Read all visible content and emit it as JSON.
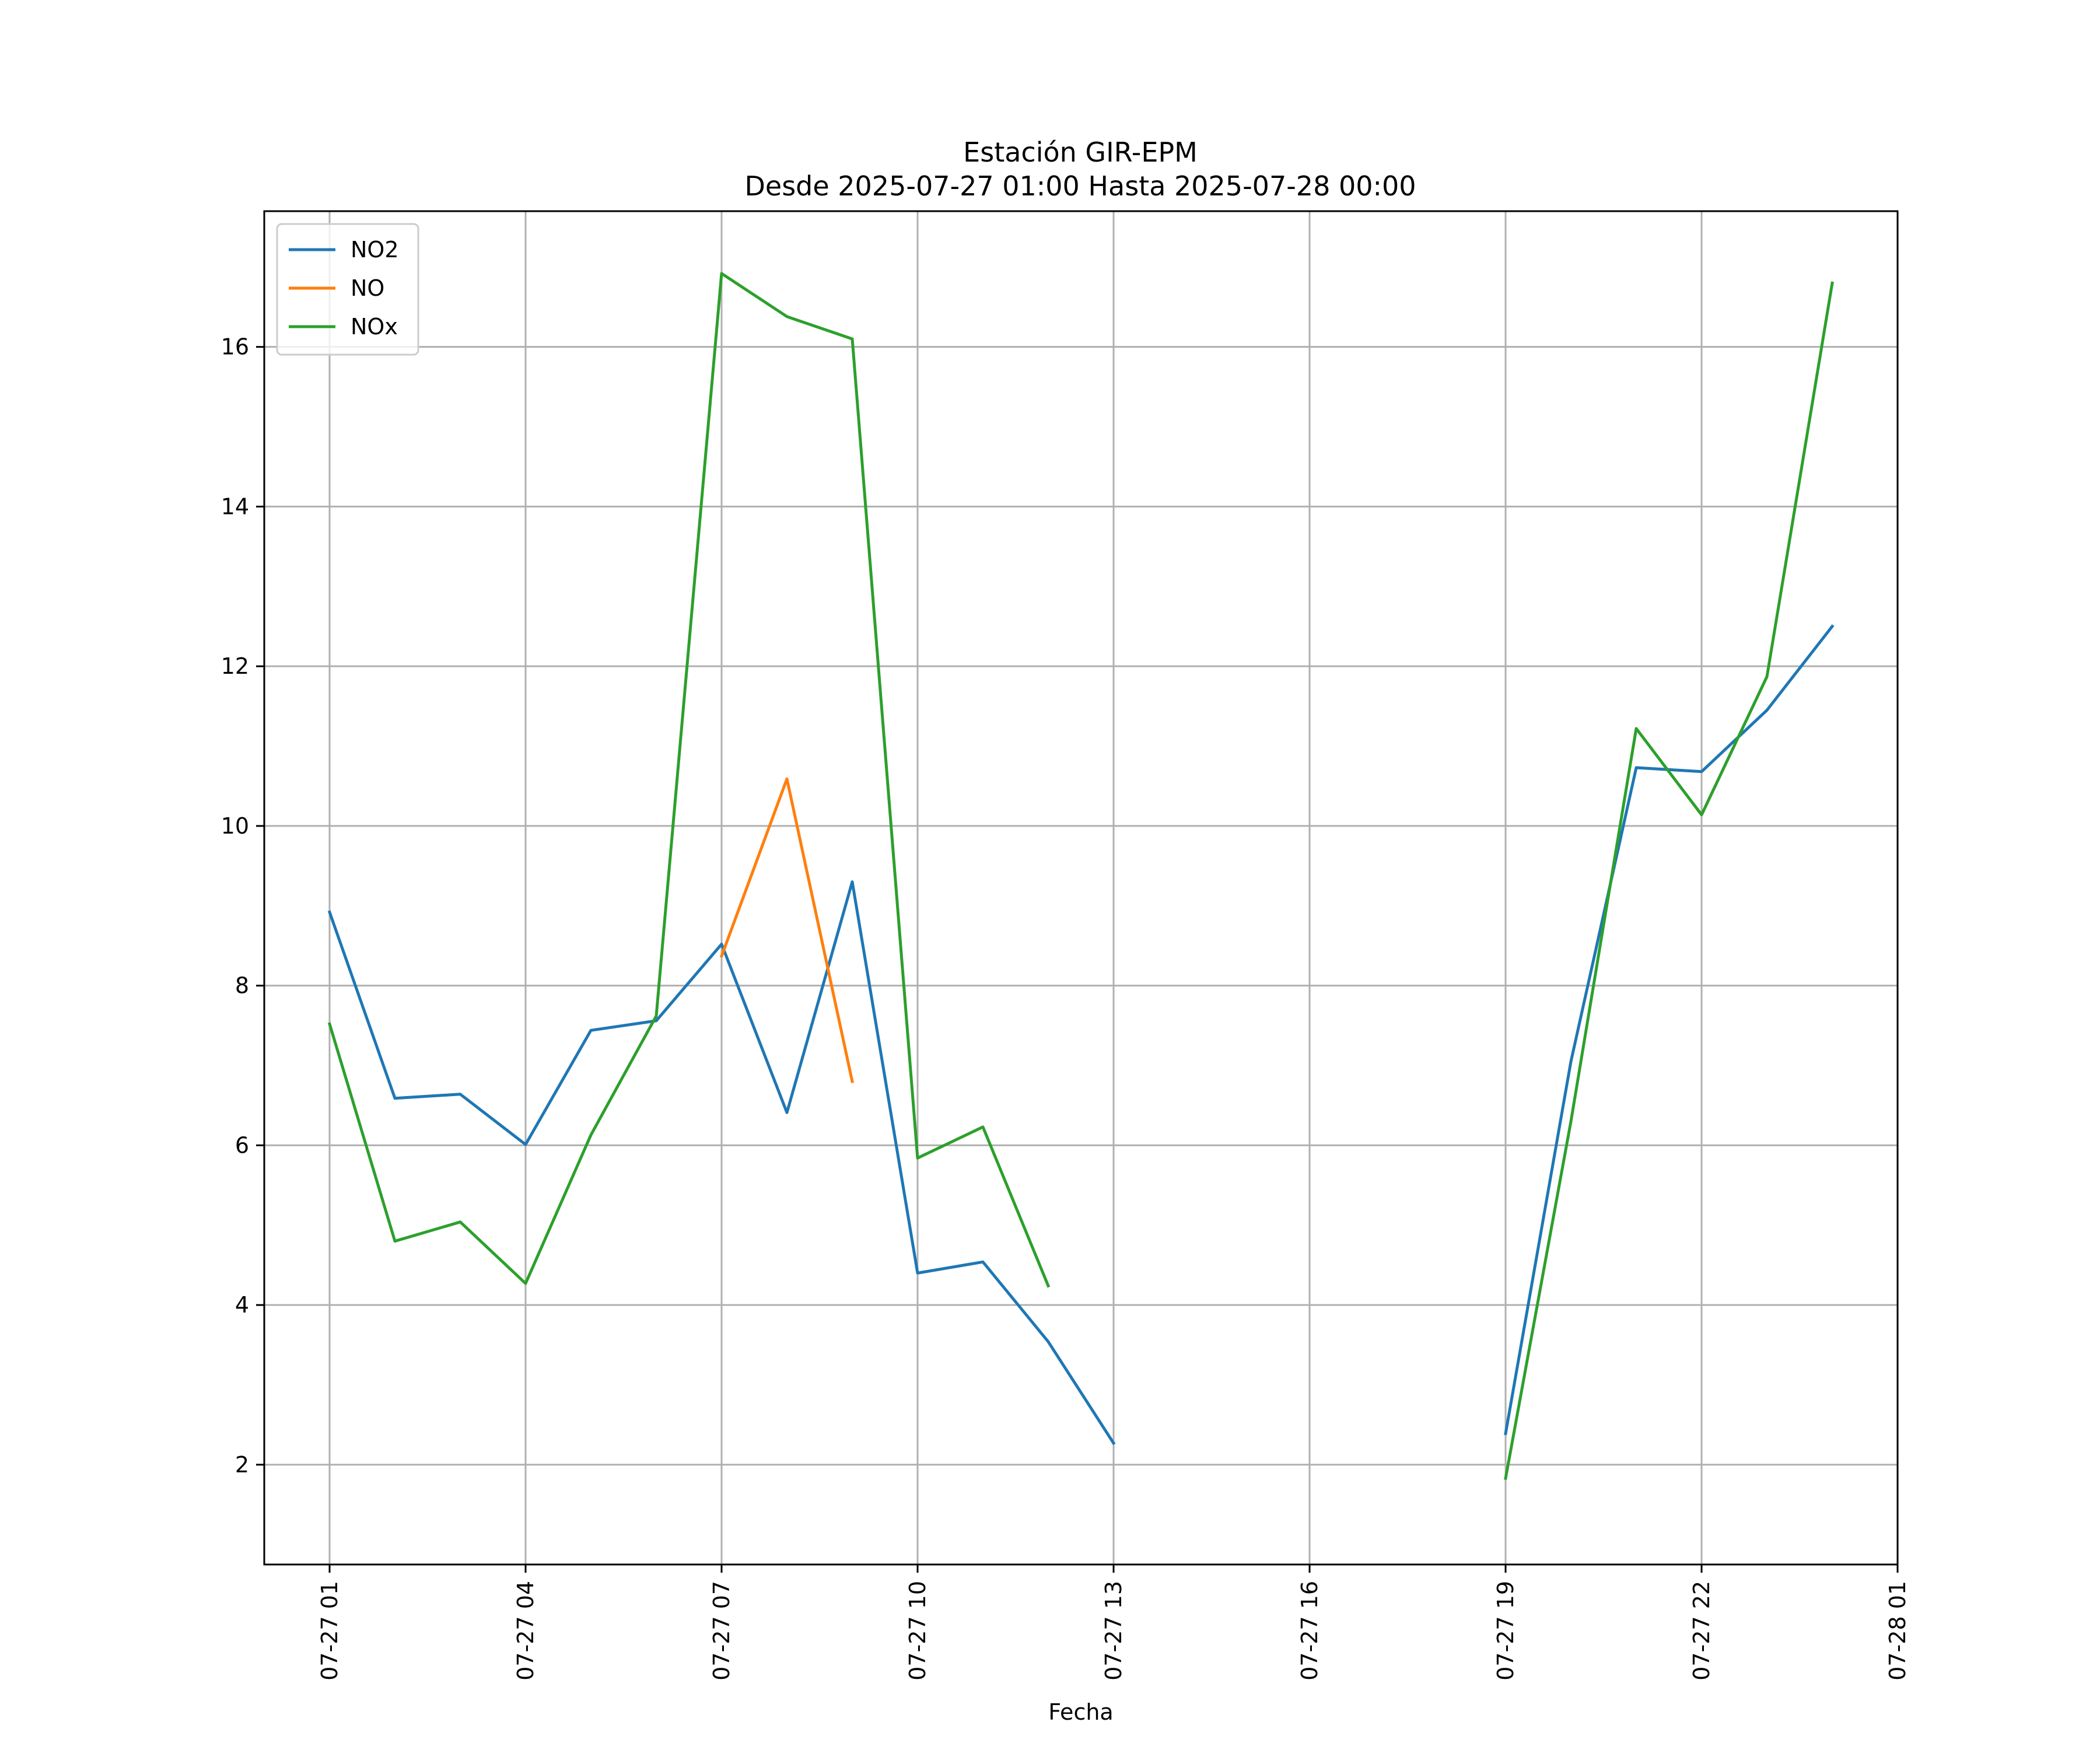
{
  "chart_data": {
    "type": "line",
    "title": "Estación GIR-EPM",
    "subtitle": "Desde 2025-07-27 01:00 Hasta 2025-07-28 00:00",
    "xlabel": "Fecha",
    "ylabel": "",
    "x": [
      "07-27 01",
      "07-27 02",
      "07-27 03",
      "07-27 04",
      "07-27 05",
      "07-27 06",
      "07-27 07",
      "07-27 08",
      "07-27 09",
      "07-27 10",
      "07-27 11",
      "07-27 12",
      "07-27 13",
      "07-27 14",
      "07-27 15",
      "07-27 16",
      "07-27 17",
      "07-27 18",
      "07-27 19",
      "07-27 20",
      "07-27 21",
      "07-27 22",
      "07-27 23",
      "07-28 00"
    ],
    "xticks": [
      "07-27 01",
      "07-27 04",
      "07-27 07",
      "07-27 10",
      "07-27 13",
      "07-27 16",
      "07-27 19",
      "07-27 22",
      "07-28 01"
    ],
    "xlim": [
      "07-27 00",
      "07-28 01"
    ],
    "yticks": [
      2,
      4,
      6,
      8,
      10,
      12,
      14,
      16
    ],
    "ylim": [
      0.75,
      17.7
    ],
    "grid": true,
    "legend_position": "upper left",
    "series": [
      {
        "name": "NO2",
        "color": "#1f77b4",
        "values": [
          8.92,
          6.59,
          6.64,
          6.01,
          7.44,
          7.56,
          8.52,
          6.41,
          9.3,
          4.4,
          4.54,
          3.54,
          2.27,
          null,
          null,
          null,
          null,
          null,
          2.39,
          7.05,
          10.73,
          10.68,
          11.45,
          12.5
        ]
      },
      {
        "name": "NO",
        "color": "#ff7f0e",
        "values": [
          null,
          null,
          null,
          null,
          null,
          null,
          8.37,
          10.59,
          6.8,
          null,
          null,
          null,
          null,
          null,
          null,
          null,
          null,
          null,
          null,
          null,
          null,
          null,
          null,
          null
        ]
      },
      {
        "name": "NOx",
        "color": "#2ca02c",
        "values": [
          7.52,
          4.8,
          5.04,
          4.27,
          6.13,
          7.62,
          16.92,
          16.38,
          16.1,
          5.84,
          6.23,
          4.24,
          null,
          null,
          null,
          null,
          null,
          null,
          1.83,
          6.3,
          11.22,
          10.14,
          11.87,
          16.8
        ]
      }
    ]
  }
}
